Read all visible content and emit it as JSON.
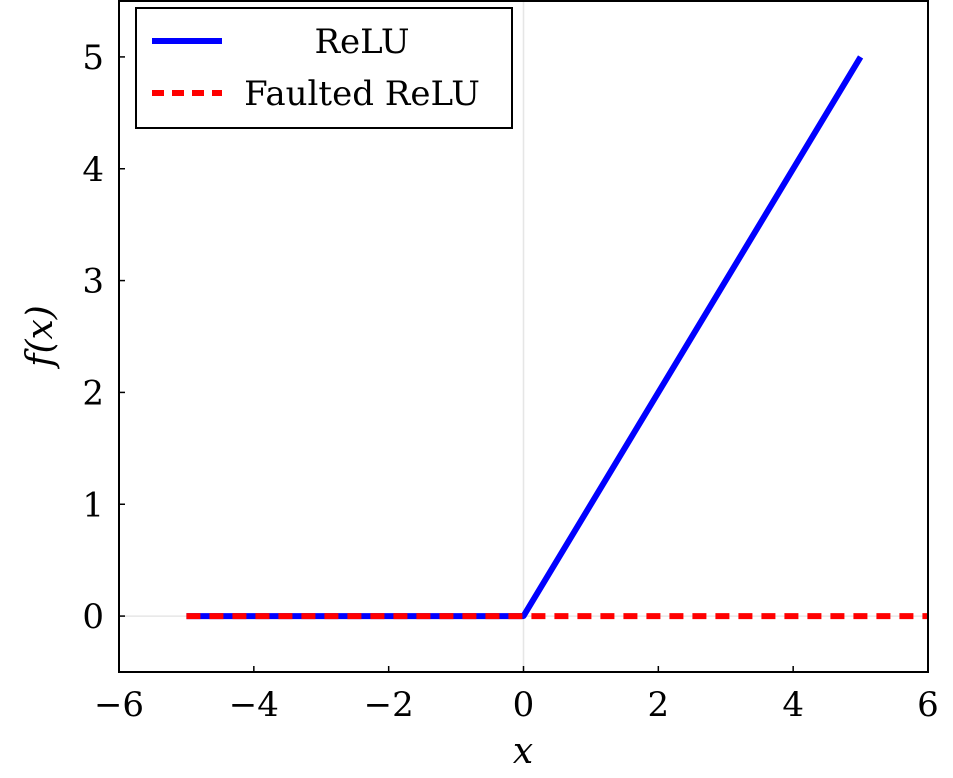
{
  "chart_data": {
    "type": "line",
    "xlabel": "x",
    "ylabel": "f(x)",
    "xlim": [
      -6,
      6
    ],
    "ylim": [
      -0.5,
      5.5
    ],
    "x_ticks": [
      -6,
      -4,
      -2,
      0,
      2,
      4,
      6
    ],
    "y_ticks": [
      0,
      1,
      2,
      3,
      4,
      5
    ],
    "x_tick_labels": [
      "−6",
      "−4",
      "−2",
      "0",
      "2",
      "4",
      "6"
    ],
    "y_tick_labels": [
      "0",
      "1",
      "2",
      "3",
      "4",
      "5"
    ],
    "grid": false,
    "zero_lines": true,
    "legend_position": "top-left",
    "series": [
      {
        "name": "ReLU",
        "color": "#0000ff",
        "style": "solid",
        "x": [
          -5,
          0,
          5
        ],
        "y": [
          0,
          0,
          5
        ]
      },
      {
        "name": "Faulted ReLU",
        "color": "#ff0000",
        "style": "dashed",
        "x": [
          -5,
          6
        ],
        "y": [
          0,
          0
        ]
      }
    ]
  }
}
